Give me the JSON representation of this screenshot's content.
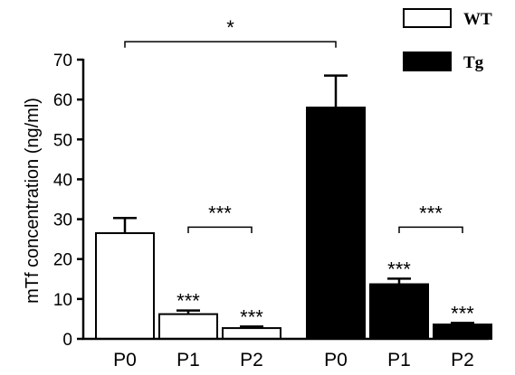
{
  "chart_data": {
    "type": "bar",
    "title": "",
    "xlabel": "",
    "ylabel": "mTf concentration (ng/ml)",
    "ylim": [
      0,
      70
    ],
    "yticks": [
      0,
      10,
      20,
      30,
      40,
      50,
      60,
      70
    ],
    "grid": false,
    "legend_position": "top-right",
    "groups": [
      {
        "name": "WT",
        "fill": "#ffffff",
        "categories": [
          "P0",
          "P1",
          "P2"
        ],
        "values": [
          26.5,
          6.2,
          2.7
        ],
        "errors": [
          3.8,
          0.9,
          0.4
        ],
        "bar_labels": [
          "",
          "***",
          "***"
        ]
      },
      {
        "name": "Tg",
        "fill": "#000000",
        "categories": [
          "P0",
          "P1",
          "P2"
        ],
        "values": [
          58,
          13.7,
          3.6
        ],
        "errors": [
          8.0,
          1.4,
          0.4
        ],
        "bar_labels": [
          "",
          "***",
          "***"
        ]
      }
    ],
    "comparisons": [
      {
        "label": "*",
        "from_group": 0,
        "from_bar": 0,
        "to_group": 1,
        "to_bar": 0,
        "y": 74.5,
        "tick": 1.5
      },
      {
        "label": "***",
        "from_group": 0,
        "from_bar": 1,
        "to_group": 0,
        "to_bar": 2,
        "y": 28,
        "tick": 1.5
      },
      {
        "label": "***",
        "from_group": 1,
        "from_bar": 1,
        "to_group": 1,
        "to_bar": 2,
        "y": 28,
        "tick": 1.5
      }
    ],
    "legend": [
      {
        "label": "WT",
        "fill": "#ffffff"
      },
      {
        "label": "Tg",
        "fill": "#000000"
      }
    ]
  }
}
